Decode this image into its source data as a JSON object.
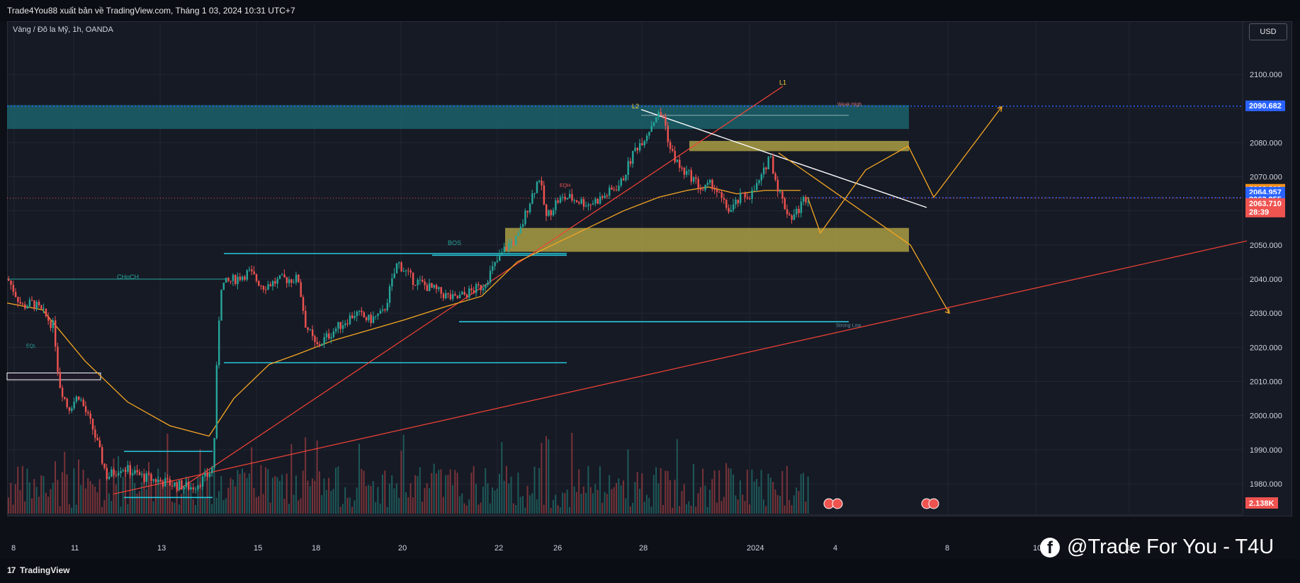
{
  "header": {
    "published": "Trade4You88 xuất bản về TradingView.com, Tháng 1 03, 2024 10:31 UTC+7",
    "symbol": "Vàng / Đô la Mỹ, 1h, OANDA",
    "currency_button": "USD"
  },
  "footer": {
    "brand": "TradingView",
    "watermark": "@Trade For You - T4U"
  },
  "colors": {
    "up": "#26a69a",
    "down": "#ef5350",
    "zone_yellow": "#c9b94a",
    "zone_teal": "#1b6b73",
    "channel": "#26c6da",
    "ma": "#f5a623",
    "trend_red": "#f44336",
    "projection": "#f5a623"
  },
  "chart_data": {
    "type": "candlestick",
    "y_axis_ticks": [
      "2100.000",
      "2090.000",
      "2080.000",
      "2070.000",
      "2060.000",
      "2050.000",
      "2040.000",
      "2030.000",
      "2020.000",
      "2010.000",
      "2000.000",
      "1990.000",
      "1980.000"
    ],
    "y_tick_values": [
      2100,
      2090,
      2080,
      2070,
      2060,
      2050,
      2040,
      2030,
      2020,
      2010,
      2000,
      1990,
      1980
    ],
    "x_axis_ticks": [
      "8",
      "11",
      "13",
      "15",
      "18",
      "20",
      "22",
      "26",
      "28",
      "2024",
      "4",
      "8",
      "10",
      "15"
    ],
    "ylim": [
      1975,
      2107
    ],
    "price_labels": [
      {
        "text": "2090.682",
        "value": 2090.682,
        "color": "#2962ff"
      },
      {
        "text": "2066.219",
        "value": 2066.219,
        "color": "#f7931a"
      },
      {
        "text": "2064.957",
        "value": 2064.957,
        "color": "#2962ff"
      },
      {
        "text": "2063.855",
        "value": 2063.855,
        "color": "#2962ff"
      },
      {
        "text": "2063.710",
        "value": 2063.71,
        "color": "#ef5350",
        "sub": "28:39"
      }
    ],
    "volume_label": "2.138K",
    "zones": [
      {
        "name": "supply-zone-top",
        "color": "teal",
        "from": 2084,
        "to": 2091
      },
      {
        "name": "supply-zone-upper",
        "color": "yellow",
        "from": 2077.5,
        "to": 2080.5
      },
      {
        "name": "demand-zone",
        "color": "yellow",
        "from": 2048,
        "to": 2055
      }
    ],
    "annotations": [
      "L1",
      "L2",
      "BOS",
      "CHoCH",
      "EQH",
      "EQL",
      "Strong Low",
      "Weak High"
    ]
  }
}
